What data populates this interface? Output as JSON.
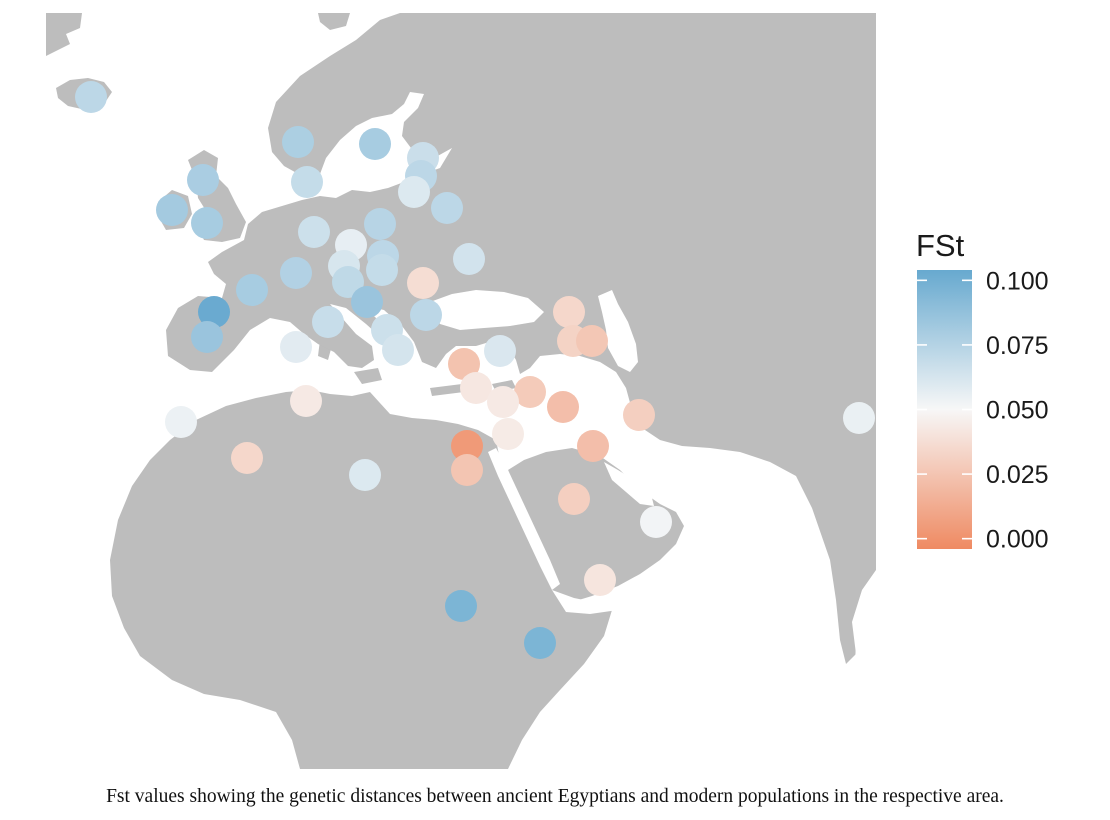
{
  "legend": {
    "title": "FSt",
    "ticks": [
      "0.100",
      "0.075",
      "0.050",
      "0.025",
      "0.000"
    ],
    "tick_values": [
      0.1,
      0.075,
      0.05,
      0.025,
      0.0
    ],
    "range": [
      -0.004,
      0.104
    ],
    "scale": "diverging",
    "placement": "right",
    "colors": {
      "low": "#ef8a62",
      "mid": "#f7f7f7",
      "high": "#67a9cf"
    }
  },
  "map": {
    "land_color": "#bdbdbd",
    "sea_color": "#ffffff",
    "point_color_encodes": "FSt"
  },
  "caption": "Fst values showing the genetic distances between ancient Egyptians and modern populations in the respective area."
}
